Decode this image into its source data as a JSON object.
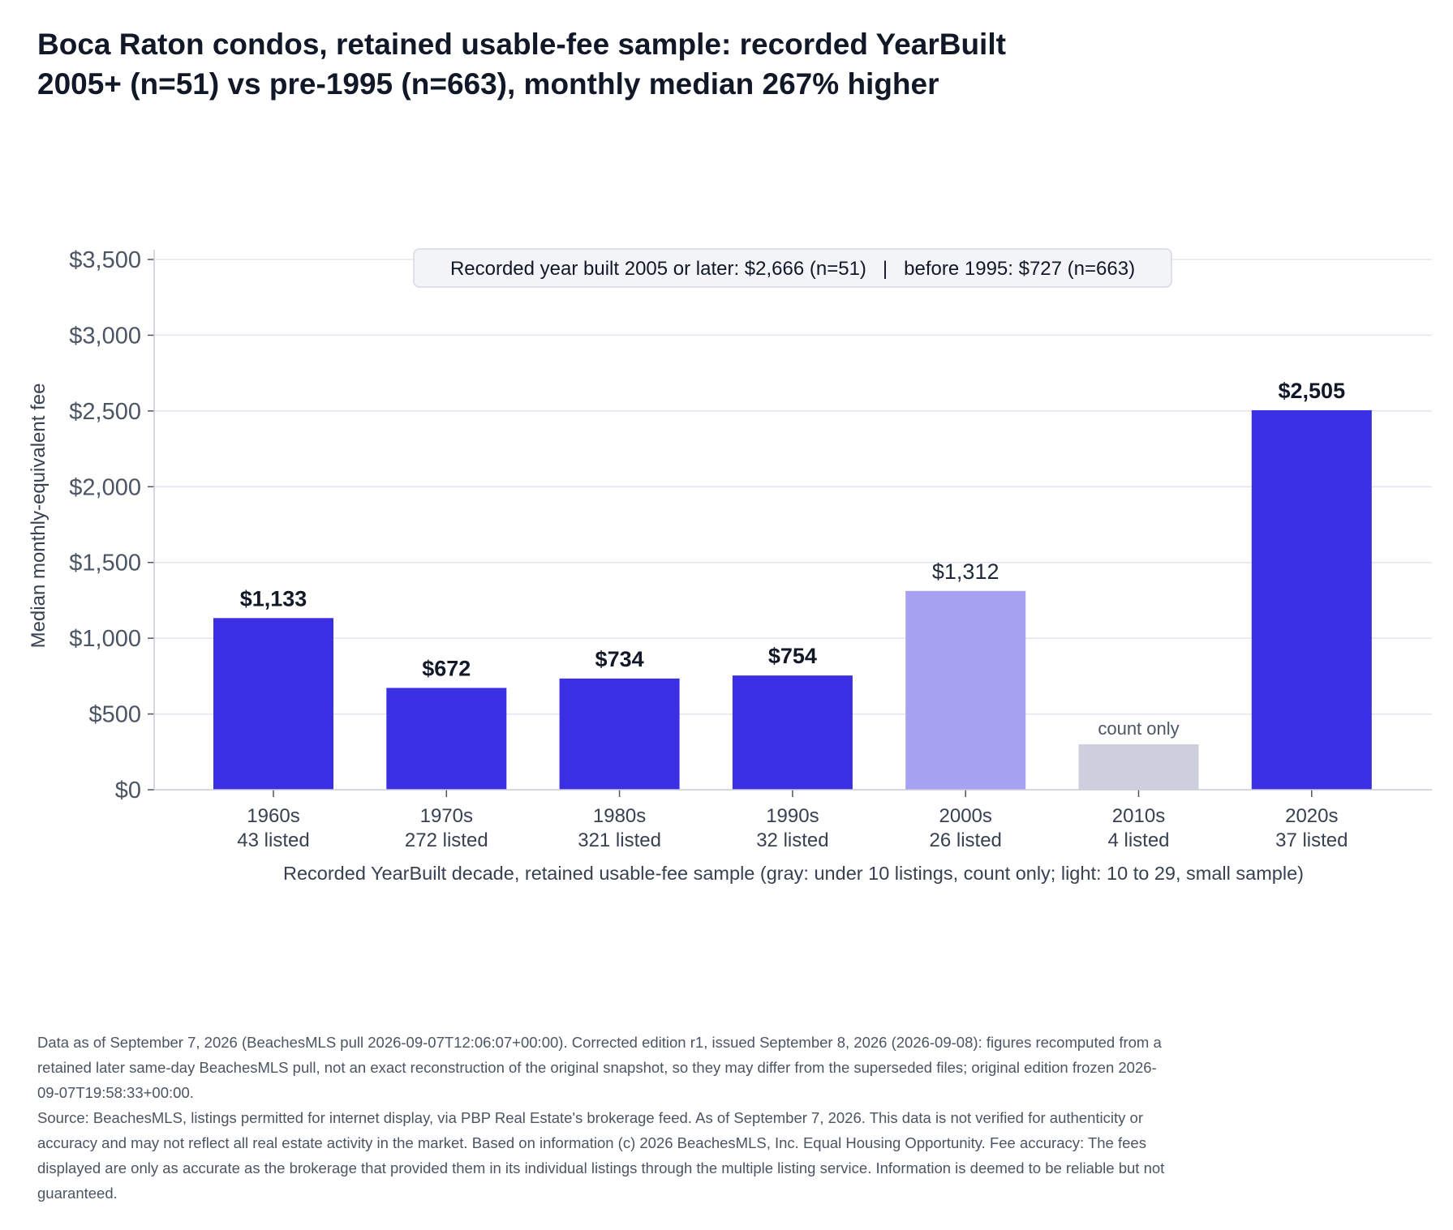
{
  "title_lines": [
    "Boca Raton condos, retained usable-fee sample: recorded YearBuilt",
    "2005+ (n=51) vs pre-1995 (n=663), monthly median 267% higher"
  ],
  "annotation": "Recorded year built 2005 or later: $2,666 (n=51)   |   before 1995: $727 (n=663)",
  "colors": {
    "bar_full": "#3b2fe3",
    "bar_small_sample": "#a7a1f2",
    "bar_count_only": "#cdd0dc",
    "grid": "#e3e5ee",
    "axis": "#c9ccd6",
    "text": "#111827",
    "muted": "#4b5563"
  },
  "chart_data": {
    "type": "bar",
    "title": "Boca Raton condos, retained usable-fee sample: recorded YearBuilt 2005+ (n=51) vs pre-1995 (n=663), monthly median 267% higher",
    "xlabel": "Recorded YearBuilt decade, retained usable-fee sample (gray: under 10 listings, count only; light: 10 to 29, small sample)",
    "ylabel": "Median monthly-equivalent fee",
    "ylim": [
      0,
      3500
    ],
    "yticks": [
      0,
      500,
      1000,
      1500,
      2000,
      2500,
      3000,
      3500
    ],
    "ytick_labels": [
      "$0",
      "$500",
      "$1,000",
      "$1,500",
      "$2,000",
      "$2,500",
      "$3,000",
      "$3,500"
    ],
    "grid": true,
    "categories": [
      "1960s",
      "1970s",
      "1980s",
      "1990s",
      "2000s",
      "2010s",
      "2020s"
    ],
    "counts": [
      "43 listed",
      "272 listed",
      "321 listed",
      "32 listed",
      "26 listed",
      "4 listed",
      "37 listed"
    ],
    "values": [
      1133,
      672,
      734,
      754,
      1312,
      300,
      2505
    ],
    "value_labels": [
      "$1,133",
      "$672",
      "$734",
      "$754",
      "$1,312",
      "count only",
      "$2,505"
    ],
    "sample_class": [
      "full",
      "full",
      "full",
      "full",
      "small",
      "count_only",
      "full"
    ]
  },
  "footer": {
    "edition_note": "Data as of September 7, 2026 (BeachesMLS pull 2026-09-07T12:06:07+00:00). Corrected edition r1, issued September 8, 2026 (2026-09-08): figures recomputed from a retained later same-day BeachesMLS pull, not an exact reconstruction of the original snapshot, so they may differ from the superseded files; original edition frozen 2026-09-07T19:58:33+00:00.",
    "source_note": "Source: BeachesMLS, listings permitted for internet display, via PBP Real Estate's brokerage feed. As of September 7, 2026. This data is not verified for authenticity or accuracy and may not reflect all real estate activity in the market. Based on information (c) 2026 BeachesMLS, Inc. Equal Housing Opportunity. Fee accuracy: The fees displayed are only as accurate as the brokerage that provided them in its individual listings through the multiple listing service. Information is deemed to be reliable but not guaranteed."
  }
}
